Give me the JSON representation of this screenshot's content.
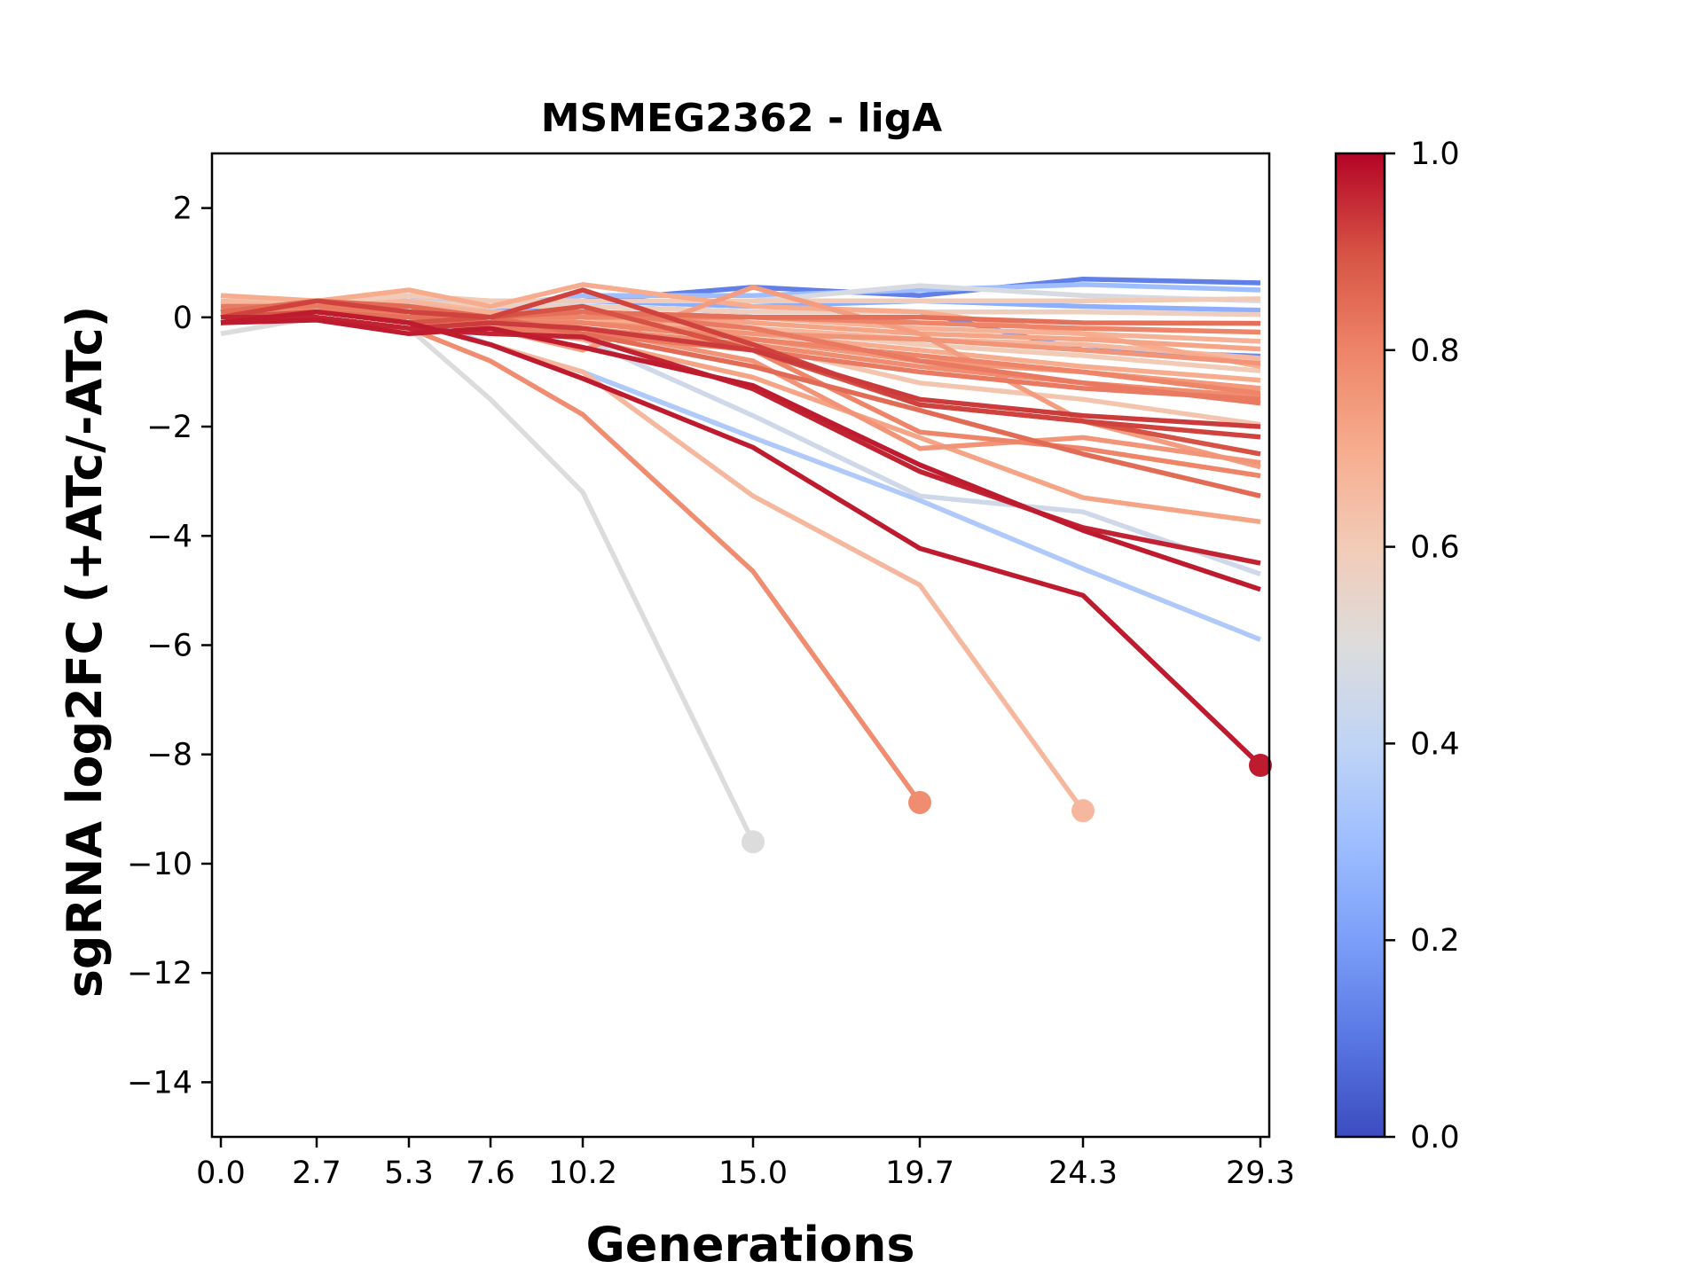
{
  "chart_data": {
    "type": "line",
    "title": "MSMEG2362 - ligA",
    "xlabel": "Generations",
    "ylabel": "sgRNA log2FC (+ATc/-ATc)",
    "x": [
      0.0,
      2.7,
      5.3,
      7.6,
      10.2,
      15.0,
      19.7,
      24.3,
      29.3
    ],
    "xtick_labels": [
      "0.0",
      "2.7",
      "5.3",
      "7.6",
      "10.2",
      "15.0",
      "19.7",
      "24.3",
      "29.3"
    ],
    "xlim": [
      -0.25,
      29.55
    ],
    "ylim": [
      -15,
      3
    ],
    "yticks": [
      2,
      0,
      -2,
      -4,
      -6,
      -8,
      -10,
      -12,
      -14
    ],
    "ytick_labels": [
      "2",
      "0",
      "−2",
      "−4",
      "−6",
      "−8",
      "−10",
      "−12",
      "−14"
    ],
    "grid": false,
    "colormap": "coolwarm",
    "colorbar": {
      "range": [
        0.0,
        1.0
      ],
      "ticks": [
        0.0,
        0.2,
        0.4,
        0.6,
        0.8,
        1.0
      ],
      "tick_labels": [
        "0.0",
        "0.2",
        "0.4",
        "0.6",
        "0.8",
        "1.0"
      ]
    },
    "series": [
      {
        "color_value": 0.5,
        "values": [
          -0.3,
          0.0,
          -0.2,
          -1.5,
          -3.2,
          -9.6,
          null,
          null,
          null
        ],
        "end_marker": true
      },
      {
        "color_value": 0.78,
        "values": [
          0.1,
          0.0,
          -0.2,
          -0.8,
          -1.78,
          -4.65,
          -8.88,
          null,
          null
        ],
        "end_marker": true
      },
      {
        "color_value": 0.66,
        "values": [
          0.2,
          0.1,
          -0.1,
          -0.5,
          -1.0,
          -3.27,
          -4.9,
          -9.03,
          null
        ],
        "end_marker": true
      },
      {
        "color_value": 0.97,
        "values": [
          -0.1,
          0.1,
          -0.1,
          -0.5,
          -1.12,
          -2.38,
          -4.23,
          -5.09,
          -8.2
        ],
        "end_marker": true
      },
      {
        "color_value": 0.35,
        "values": [
          0.0,
          0.1,
          0.0,
          -0.5,
          -1.0,
          -2.2,
          -3.35,
          -4.6,
          -5.9
        ]
      },
      {
        "color_value": 0.96,
        "values": [
          0.0,
          0.0,
          -0.2,
          -0.3,
          -0.36,
          -1.31,
          -2.82,
          -3.85,
          -4.5
        ]
      },
      {
        "color_value": 0.45,
        "values": [
          0.1,
          0.1,
          0.3,
          0.0,
          -0.4,
          -1.8,
          -3.27,
          -3.56,
          -4.7
        ]
      },
      {
        "color_value": 0.97,
        "values": [
          -0.1,
          -0.05,
          -0.3,
          -0.2,
          -0.55,
          -1.25,
          -2.7,
          -3.9,
          -4.98
        ]
      },
      {
        "color_value": 0.85,
        "values": [
          0.1,
          0.3,
          0.2,
          0.0,
          -0.3,
          -0.9,
          -1.7,
          -2.5,
          -3.27
        ]
      },
      {
        "color_value": 0.72,
        "values": [
          0.2,
          0.2,
          0.0,
          -0.2,
          -0.4,
          -1.1,
          -2.2,
          -3.3,
          -3.74
        ]
      },
      {
        "color_value": 0.92,
        "values": [
          0.0,
          0.3,
          0.1,
          0.0,
          0.5,
          -0.5,
          -1.6,
          -1.9,
          -2.19
        ]
      },
      {
        "color_value": 0.9,
        "values": [
          0.0,
          0.1,
          -0.1,
          0.0,
          0.2,
          -0.6,
          -1.6,
          -1.9,
          -2.5
        ]
      },
      {
        "color_value": 0.76,
        "values": [
          0.2,
          0.2,
          0.1,
          0.0,
          -0.2,
          -0.8,
          -2.4,
          -2.2,
          -2.66
        ]
      },
      {
        "color_value": 0.8,
        "values": [
          0.1,
          0.2,
          0.0,
          -0.1,
          -0.3,
          -0.6,
          -2.1,
          -2.4,
          -2.9
        ]
      },
      {
        "color_value": 0.74,
        "values": [
          0.1,
          0.3,
          0.1,
          -0.2,
          -0.6,
          0.55,
          -0.3,
          -1.9,
          -2.74
        ]
      },
      {
        "color_value": 0.62,
        "values": [
          0.3,
          0.1,
          0.2,
          0.0,
          -0.2,
          -0.5,
          -1.2,
          -1.5,
          -1.96
        ]
      },
      {
        "color_value": 0.82,
        "values": [
          0.2,
          0.2,
          0.1,
          0.0,
          0.1,
          -0.2,
          -0.8,
          -1.2,
          -1.57
        ]
      },
      {
        "color_value": 0.8,
        "values": [
          0.1,
          0.1,
          0.0,
          -0.1,
          -0.1,
          -0.4,
          -0.7,
          -1.0,
          -1.39
        ]
      },
      {
        "color_value": 0.7,
        "values": [
          0.2,
          0.2,
          0.1,
          0.0,
          0.0,
          -0.3,
          -0.6,
          -0.9,
          -1.15
        ]
      },
      {
        "color_value": 0.6,
        "values": [
          0.3,
          0.2,
          0.2,
          0.1,
          0.1,
          -0.2,
          -0.5,
          -0.7,
          -0.98
        ]
      },
      {
        "color_value": 0.76,
        "values": [
          0.1,
          0.1,
          0.1,
          0.0,
          -0.1,
          -0.3,
          -0.4,
          -0.6,
          -0.84
        ]
      },
      {
        "color_value": 0.15,
        "values": [
          0.1,
          0.2,
          0.3,
          0.1,
          0.2,
          0.1,
          0.1,
          -0.6,
          -0.71
        ]
      },
      {
        "color_value": 0.72,
        "values": [
          0.2,
          0.2,
          0.2,
          0.0,
          0.1,
          -0.1,
          -0.3,
          -0.4,
          -0.58
        ]
      },
      {
        "color_value": 0.68,
        "values": [
          0.2,
          0.1,
          0.2,
          0.1,
          0.1,
          0.0,
          -0.2,
          -0.3,
          -0.44
        ]
      },
      {
        "color_value": 0.8,
        "values": [
          0.1,
          0.2,
          0.1,
          0.0,
          0.0,
          0.0,
          -0.1,
          -0.2,
          -0.27
        ]
      },
      {
        "color_value": 0.84,
        "values": [
          0.0,
          0.1,
          0.0,
          0.0,
          0.1,
          0.0,
          0.0,
          -0.1,
          -0.11
        ]
      },
      {
        "color_value": 0.58,
        "values": [
          0.2,
          0.3,
          0.3,
          0.2,
          0.2,
          0.1,
          0.1,
          0.1,
          0.05
        ]
      },
      {
        "color_value": 0.25,
        "values": [
          0.2,
          0.3,
          0.4,
          0.2,
          0.3,
          0.2,
          0.3,
          0.2,
          0.13
        ]
      },
      {
        "color_value": 0.6,
        "values": [
          0.3,
          0.3,
          0.4,
          0.3,
          0.3,
          0.3,
          0.3,
          0.3,
          0.34
        ]
      },
      {
        "color_value": 0.3,
        "values": [
          0.1,
          0.2,
          0.4,
          0.2,
          0.4,
          0.4,
          0.5,
          0.6,
          0.5
        ]
      },
      {
        "color_value": 0.12,
        "values": [
          0.1,
          0.2,
          0.3,
          0.2,
          0.3,
          0.55,
          0.4,
          0.7,
          0.63
        ]
      },
      {
        "color_value": 0.48,
        "values": [
          0.0,
          0.2,
          0.3,
          0.2,
          0.3,
          0.3,
          0.58,
          0.4,
          0.3
        ]
      },
      {
        "color_value": 0.93,
        "values": [
          -0.1,
          0.0,
          -0.2,
          -0.1,
          -0.2,
          -0.6,
          -1.5,
          -1.8,
          -2.0
        ]
      },
      {
        "color_value": 0.78,
        "values": [
          0.2,
          0.1,
          0.0,
          -0.1,
          -0.2,
          -0.5,
          -0.9,
          -1.2,
          -1.45
        ]
      },
      {
        "color_value": 0.75,
        "values": [
          0.1,
          0.2,
          0.1,
          0.0,
          -0.1,
          -0.4,
          -0.8,
          -1.0,
          -1.3
        ]
      },
      {
        "color_value": 0.66,
        "values": [
          0.3,
          0.2,
          0.3,
          0.1,
          0.0,
          -0.2,
          -0.4,
          -0.5,
          -0.75
        ]
      },
      {
        "color_value": 0.82,
        "values": [
          0.0,
          0.1,
          -0.1,
          -0.2,
          -0.3,
          -0.6,
          -1.0,
          -1.3,
          -1.5
        ]
      },
      {
        "color_value": 0.7,
        "values": [
          0.4,
          0.3,
          0.5,
          0.2,
          0.6,
          0.2,
          0.1,
          -0.3,
          -0.9
        ]
      }
    ]
  }
}
